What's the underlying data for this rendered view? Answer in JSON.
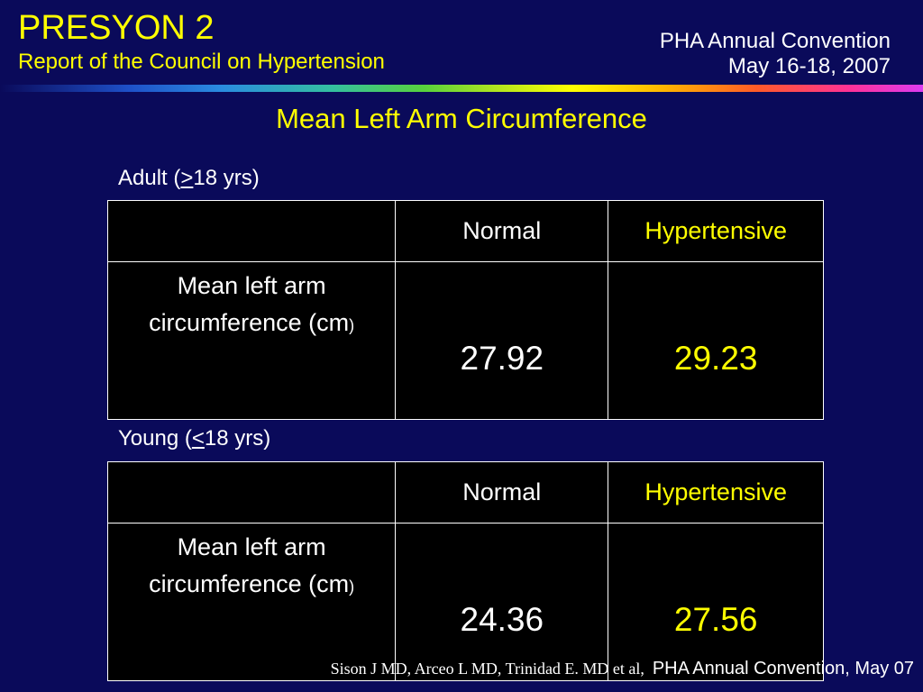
{
  "header": {
    "title": "PRESYON 2",
    "subtitle": "Report of the Council on Hypertension",
    "event_name": "PHA Annual Convention",
    "event_dates": "May 16-18, 2007"
  },
  "slide": {
    "heading": "Mean Left Arm Circumference"
  },
  "colors": {
    "background": "#0a0a5a",
    "accent": "#ffff00",
    "text": "#ffffff",
    "table_background": "#000000"
  },
  "tables": [
    {
      "label_prefix": "Adult (",
      "label_symbol": ">",
      "label_suffix": "18 yrs)",
      "headers": [
        "",
        "Normal",
        "Hypertensive"
      ],
      "row_label": "Mean left arm circumference (cm",
      "row_label_close": ")",
      "normal": "27.92",
      "hypertensive": "29.23"
    },
    {
      "label_prefix": "Young (",
      "label_symbol": "<",
      "label_suffix": "18 yrs)",
      "headers": [
        "",
        "Normal",
        "Hypertensive"
      ],
      "row_label": "Mean left arm circumference (cm",
      "row_label_close": ")",
      "normal": "24.36",
      "hypertensive": "27.56"
    }
  ],
  "footer": {
    "authors": "Sison J MD, Arceo L MD, Trinidad E. MD et al,",
    "event": "PHA Annual Convention, May 07"
  }
}
